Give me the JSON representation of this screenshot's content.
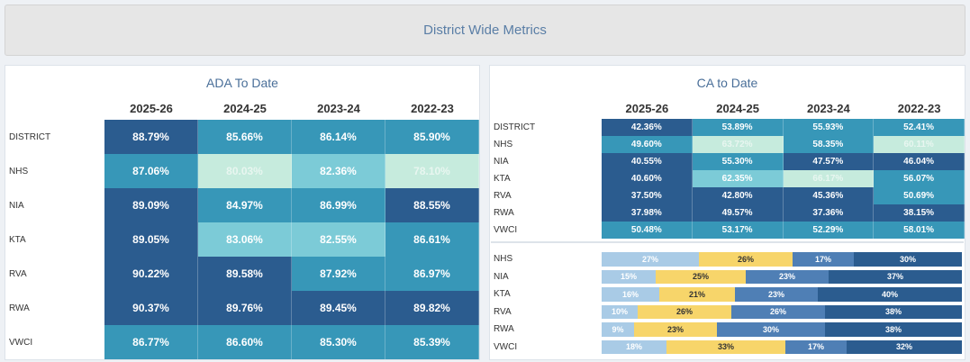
{
  "header": {
    "title": "District Wide Metrics"
  },
  "ada": {
    "title": "ADA To Date",
    "columns": [
      "2025-26",
      "2024-25",
      "2023-24",
      "2022-23"
    ],
    "rows": [
      {
        "label": "DISTRICT",
        "cells": [
          "88.79%",
          "85.66%",
          "86.14%",
          "85.90%"
        ],
        "colors": [
          "#2b5c8f",
          "#3797b8",
          "#3797b8",
          "#3797b8"
        ]
      },
      {
        "label": "NHS",
        "cells": [
          "87.06%",
          "80.03%",
          "82.36%",
          "78.10%"
        ],
        "colors": [
          "#3797b8",
          "#c6ebdd",
          "#7ccbd7",
          "#c6ebdd"
        ]
      },
      {
        "label": "NIA",
        "cells": [
          "89.09%",
          "84.97%",
          "86.99%",
          "88.55%"
        ],
        "colors": [
          "#2b5c8f",
          "#3797b8",
          "#3797b8",
          "#2b5c8f"
        ]
      },
      {
        "label": "KTA",
        "cells": [
          "89.05%",
          "83.06%",
          "82.55%",
          "86.61%"
        ],
        "colors": [
          "#2b5c8f",
          "#7ccbd7",
          "#7ccbd7",
          "#3797b8"
        ]
      },
      {
        "label": "RVA",
        "cells": [
          "90.22%",
          "89.58%",
          "87.92%",
          "86.97%"
        ],
        "colors": [
          "#2b5c8f",
          "#2b5c8f",
          "#3797b8",
          "#3797b8"
        ]
      },
      {
        "label": "RWA",
        "cells": [
          "90.37%",
          "89.76%",
          "89.45%",
          "89.82%"
        ],
        "colors": [
          "#2b5c8f",
          "#2b5c8f",
          "#2b5c8f",
          "#2b5c8f"
        ]
      },
      {
        "label": "VWCI",
        "cells": [
          "86.77%",
          "86.60%",
          "85.30%",
          "85.39%"
        ],
        "colors": [
          "#3797b8",
          "#3797b8",
          "#3797b8",
          "#3797b8"
        ]
      }
    ]
  },
  "ca": {
    "title": "CA to Date",
    "columns": [
      "2025-26",
      "2024-25",
      "2023-24",
      "2022-23"
    ],
    "rows": [
      {
        "label": "DISTRICT",
        "cells": [
          "42.36%",
          "53.89%",
          "55.93%",
          "52.41%"
        ],
        "colors": [
          "#2b5c8f",
          "#3797b8",
          "#3797b8",
          "#3797b8"
        ]
      },
      {
        "label": "NHS",
        "cells": [
          "49.60%",
          "63.72%",
          "58.35%",
          "60.11%"
        ],
        "colors": [
          "#3797b8",
          "#c6ebdd",
          "#3797b8",
          "#c6ebdd"
        ]
      },
      {
        "label": "NIA",
        "cells": [
          "40.55%",
          "55.30%",
          "47.57%",
          "46.04%"
        ],
        "colors": [
          "#2b5c8f",
          "#3797b8",
          "#2b5c8f",
          "#2b5c8f"
        ]
      },
      {
        "label": "KTA",
        "cells": [
          "40.60%",
          "62.35%",
          "66.17%",
          "56.07%"
        ],
        "colors": [
          "#2b5c8f",
          "#7ccbd7",
          "#c6ebdd",
          "#3797b8"
        ]
      },
      {
        "label": "RVA",
        "cells": [
          "37.50%",
          "42.80%",
          "45.36%",
          "50.69%"
        ],
        "colors": [
          "#2b5c8f",
          "#2b5c8f",
          "#2b5c8f",
          "#3797b8"
        ]
      },
      {
        "label": "RWA",
        "cells": [
          "37.98%",
          "49.57%",
          "37.36%",
          "38.15%"
        ],
        "colors": [
          "#2b5c8f",
          "#2b5c8f",
          "#2b5c8f",
          "#2b5c8f"
        ]
      },
      {
        "label": "VWCI",
        "cells": [
          "50.48%",
          "53.17%",
          "52.29%",
          "58.01%"
        ],
        "colors": [
          "#3797b8",
          "#3797b8",
          "#3797b8",
          "#3797b8"
        ]
      }
    ]
  },
  "chart_data": {
    "type": "stacked-bar",
    "categories": [
      "NHS",
      "NIA",
      "KTA",
      "RVA",
      "RWA",
      "VWCI"
    ],
    "xlim": [
      0,
      100
    ],
    "series": [
      {
        "color": "#a9cbe6",
        "values": [
          27,
          15,
          16,
          10,
          9,
          18
        ],
        "value_labels": [
          "27%",
          "15%",
          "16%",
          "10%",
          "9%",
          "18%"
        ]
      },
      {
        "color": "#f7d56a",
        "values": [
          26,
          25,
          21,
          26,
          23,
          33
        ],
        "value_labels": [
          "26%",
          "25%",
          "21%",
          "26%",
          "23%",
          "33%"
        ]
      },
      {
        "color": "#4f7fb5",
        "values": [
          17,
          23,
          23,
          26,
          30,
          17
        ],
        "value_labels": [
          "17%",
          "23%",
          "23%",
          "26%",
          "30%",
          "17%"
        ]
      },
      {
        "color": "#2b5c8f",
        "values": [
          30,
          37,
          40,
          38,
          38,
          32
        ],
        "value_labels": [
          "30%",
          "37%",
          "40%",
          "38%",
          "38%",
          "32%"
        ]
      }
    ]
  }
}
